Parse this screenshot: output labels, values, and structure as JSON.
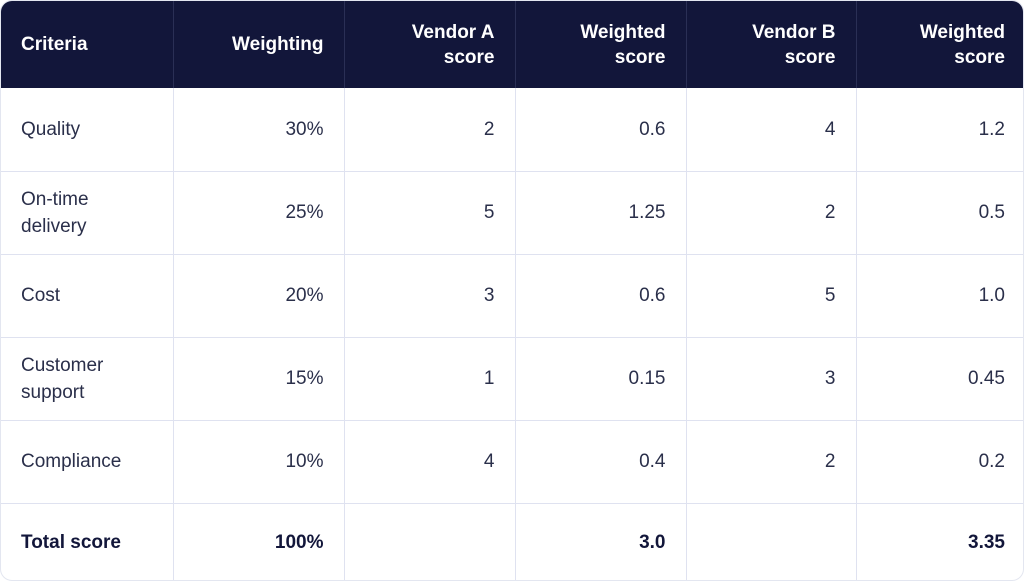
{
  "table": {
    "headers": [
      "Criteria",
      "Weighting",
      "Vendor A score",
      "Weighted score",
      "Vendor B score",
      "Weighted score"
    ],
    "rows": [
      [
        "Quality",
        "30%",
        "2",
        "0.6",
        "4",
        "1.2"
      ],
      [
        "On-time delivery",
        "25%",
        "5",
        "1.25",
        "2",
        "0.5"
      ],
      [
        "Cost",
        "20%",
        "3",
        "0.6",
        "5",
        "1.0"
      ],
      [
        "Customer support",
        "15%",
        "1",
        "0.15",
        "3",
        "0.45"
      ],
      [
        "Compliance",
        "10%",
        "4",
        "0.4",
        "2",
        "0.2"
      ]
    ],
    "total": [
      "Total score",
      "100%",
      "",
      "3.0",
      "",
      "3.35"
    ]
  },
  "colors": {
    "header_bg": "#12163a",
    "header_text": "#ffffff",
    "body_text": "#2a2f4a",
    "grid": "#dfe2f0"
  }
}
